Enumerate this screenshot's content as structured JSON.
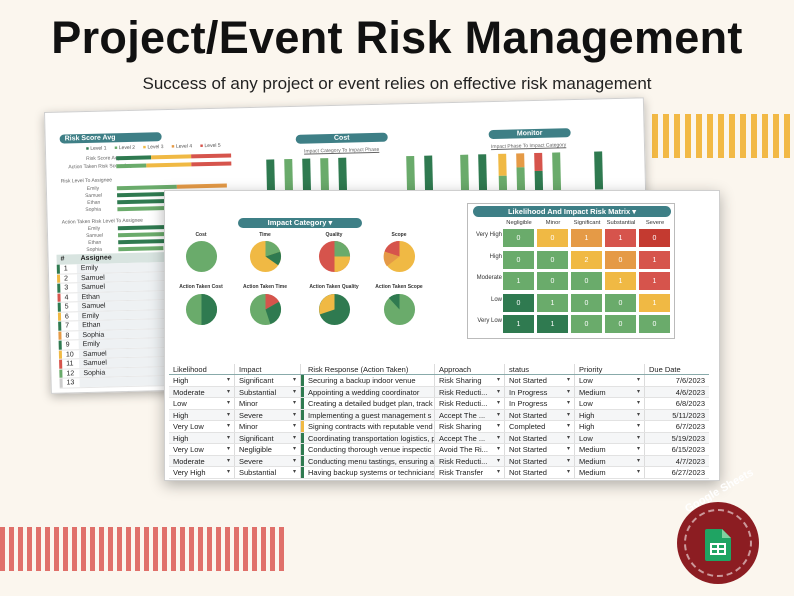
{
  "header": {
    "title": "Project/Event Risk Management",
    "subtitle": "Success of any project or event relies on effective risk management"
  },
  "back_sheet": {
    "dropdown": "Risk Score Avg",
    "levels": [
      "Level 1",
      "Level 2",
      "Level 3",
      "Level 4",
      "Level 5"
    ],
    "small_labels": [
      "Risk Score Avg",
      "Action Taken Risk Score Avg",
      "Risk Level To Assignee",
      "Action Taken Risk Level To Assignee"
    ],
    "assignees": [
      "Emily",
      "Samuel",
      "Ethan",
      "Sophia"
    ],
    "cost_pill": "Cost",
    "monitor_pill": "Monitor",
    "cost_sub": "Impact Category To Impact Phase",
    "monitor_sub": "Impact Phase To Impact Category",
    "table_headers": [
      "#",
      "Assignee"
    ],
    "rows": [
      {
        "num": "1",
        "name": "Emily"
      },
      {
        "num": "2",
        "name": "Samuel"
      },
      {
        "num": "3",
        "name": "Samuel"
      },
      {
        "num": "4",
        "name": "Ethan"
      },
      {
        "num": "5",
        "name": "Samuel"
      },
      {
        "num": "6",
        "name": "Emily"
      },
      {
        "num": "7",
        "name": "Ethan"
      },
      {
        "num": "8",
        "name": "Sophia"
      },
      {
        "num": "9",
        "name": "Emily"
      },
      {
        "num": "10",
        "name": "Samuel"
      },
      {
        "num": "11",
        "name": "Samuel"
      },
      {
        "num": "12",
        "name": "Sophia"
      },
      {
        "num": "13",
        "name": ""
      }
    ]
  },
  "impact": {
    "title": "Impact Category",
    "top_labels": [
      "Cost",
      "Time",
      "Quality",
      "Scope"
    ],
    "bottom_labels": [
      "Action Taken Cost",
      "Action Taken Time",
      "Action Taken Quality",
      "Action Taken Scope"
    ]
  },
  "matrix": {
    "title": "Likelihood And Impact Risk Matrix",
    "columns": [
      "Negligible",
      "Minor",
      "Significant",
      "Substantial",
      "Severe"
    ],
    "rows": [
      {
        "label": "Very High",
        "cells": [
          "0",
          "0",
          "1",
          "1",
          "0"
        ]
      },
      {
        "label": "High",
        "cells": [
          "0",
          "0",
          "2",
          "0",
          "1"
        ]
      },
      {
        "label": "Moderate",
        "cells": [
          "1",
          "0",
          "0",
          "1",
          "1"
        ]
      },
      {
        "label": "Low",
        "cells": [
          "0",
          "1",
          "0",
          "0",
          "1"
        ]
      },
      {
        "label": "Very Low",
        "cells": [
          "1",
          "1",
          "0",
          "0",
          "0"
        ]
      }
    ]
  },
  "table": {
    "headers": [
      "Likelihood",
      "Impact",
      "Risk Response (Action Taken)",
      "Approach",
      "status",
      "Priority",
      "Due Date"
    ],
    "rows": [
      [
        "High",
        "Significant",
        "Securing a backup indoor venue",
        "Risk Sharing",
        "Not Started",
        "Low",
        "7/6/2023"
      ],
      [
        "Moderate",
        "Substantial",
        "Appointing a wedding coordinator",
        "Risk Reducti...",
        "In Progress",
        "Medium",
        "4/6/2023"
      ],
      [
        "Low",
        "Minor",
        "Creating a detailed budget plan, track",
        "Risk Reducti...",
        "In Progress",
        "Low",
        "6/8/2023"
      ],
      [
        "High",
        "Severe",
        "Implementing a guest management s",
        "Accept The ...",
        "Not Started",
        "High",
        "5/11/2023"
      ],
      [
        "Very Low",
        "Minor",
        "Signing contracts with reputable vend",
        "Risk Sharing",
        "Completed",
        "High",
        "6/7/2023"
      ],
      [
        "High",
        "Significant",
        "Coordinating transportation logistics, p",
        "Accept The ...",
        "Not Started",
        "Low",
        "5/19/2023"
      ],
      [
        "Very Low",
        "Negligible",
        "Conducting thorough venue inspectic",
        "Avoid The Ri...",
        "Not Started",
        "Medium",
        "6/15/2023"
      ],
      [
        "Moderate",
        "Severe",
        "Conducting menu tastings, ensuring a",
        "Risk Reducti...",
        "Not Started",
        "Medium",
        "4/7/2023"
      ],
      [
        "Very High",
        "Substantial",
        "Having backup systems or technicians",
        "Risk Transfer",
        "Not Started",
        "Medium",
        "6/27/2023"
      ]
    ]
  },
  "badge": {
    "text": "Google Sheets"
  },
  "colors": {
    "green_dark": "#2f7a50",
    "green": "#6aab6b",
    "yellow": "#f0b944",
    "orange": "#e59a46",
    "red": "#d6544c",
    "teal": "#3e7f86"
  }
}
